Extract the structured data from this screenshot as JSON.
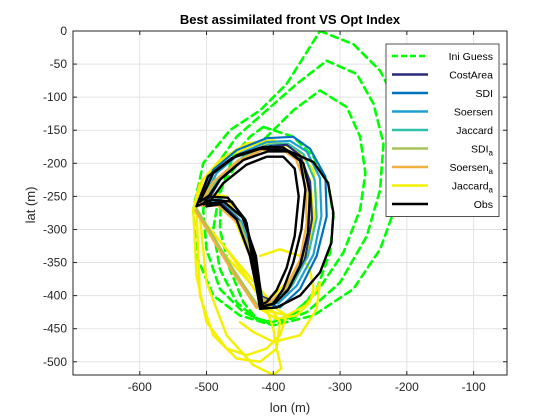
{
  "chart_data": {
    "type": "line",
    "title": "Best assimilated front VS Opt Index",
    "xlabel": "lon (m)",
    "ylabel": "lat (m)",
    "xlim": [
      -700,
      -50
    ],
    "ylim": [
      -520,
      0
    ],
    "xticks": [
      -600,
      -500,
      -400,
      -300,
      -200,
      -100
    ],
    "yticks": [
      0,
      -50,
      -100,
      -150,
      -200,
      -250,
      -300,
      -350,
      -400,
      -450,
      -500
    ],
    "grid": true,
    "legend_position": "top-right",
    "legend": [
      {
        "label": "Ini Guess",
        "sub": "",
        "color": "#00ff00",
        "dash": true
      },
      {
        "label": "CostArea",
        "sub": "",
        "color": "#2a2a7a",
        "dash": false
      },
      {
        "label": "SDI",
        "sub": "",
        "color": "#0072bd",
        "dash": false
      },
      {
        "label": "Soersen",
        "sub": "",
        "color": "#1e9fd0",
        "dash": false
      },
      {
        "label": "Jaccard",
        "sub": "",
        "color": "#30c0a8",
        "dash": false
      },
      {
        "label": "SDI",
        "sub": "a",
        "color": "#a6c45a",
        "dash": false
      },
      {
        "label": "Soersen",
        "sub": "a",
        "color": "#f0b040",
        "dash": false
      },
      {
        "label": "Jaccard",
        "sub": "a",
        "color": "#f5f000",
        "dash": false
      },
      {
        "label": "Obs",
        "sub": "",
        "color": "#000000",
        "dash": false
      }
    ],
    "series": [
      {
        "color": "#00ff00",
        "dash": true,
        "width": 2.6,
        "x": [
          -330,
          -280,
          -240,
          -210,
          -200,
          -215,
          -240,
          -280,
          -340,
          -400,
          -450,
          -490,
          -515,
          -520,
          -505,
          -465,
          -420,
          -380,
          -330
        ],
        "y": [
          0,
          -20,
          -60,
          -120,
          -190,
          -260,
          -330,
          -390,
          -430,
          -445,
          -430,
          -400,
          -340,
          -270,
          -200,
          -150,
          -120,
          -80,
          0
        ]
      },
      {
        "color": "#00ff00",
        "dash": true,
        "width": 2.6,
        "x": [
          -320,
          -275,
          -250,
          -235,
          -240,
          -260,
          -300,
          -350,
          -400,
          -445,
          -480,
          -500,
          -505,
          -490,
          -455,
          -410,
          -365,
          -320
        ],
        "y": [
          -45,
          -65,
          -110,
          -170,
          -240,
          -310,
          -380,
          -425,
          -445,
          -425,
          -390,
          -330,
          -270,
          -210,
          -160,
          -120,
          -80,
          -45
        ]
      },
      {
        "color": "#00ff00",
        "dash": true,
        "width": 2.6,
        "x": [
          -330,
          -290,
          -270,
          -262,
          -270,
          -295,
          -335,
          -380,
          -420,
          -455,
          -480,
          -490,
          -480,
          -450,
          -410,
          -370,
          -330
        ],
        "y": [
          -90,
          -115,
          -160,
          -215,
          -270,
          -335,
          -395,
          -435,
          -440,
          -410,
          -360,
          -300,
          -240,
          -195,
          -160,
          -120,
          -90
        ]
      },
      {
        "color": "#00ff00",
        "dash": true,
        "width": 2.6,
        "x": [
          -415,
          -370,
          -340,
          -318,
          -310,
          -315,
          -335,
          -365,
          -400,
          -425,
          -445,
          -465,
          -480,
          -478,
          -460,
          -435,
          -415
        ],
        "y": [
          -145,
          -160,
          -190,
          -230,
          -280,
          -335,
          -390,
          -425,
          -440,
          -435,
          -410,
          -360,
          -300,
          -240,
          -190,
          -160,
          -145
        ]
      },
      {
        "color": "#f5f000",
        "dash": false,
        "width": 2.4,
        "x": [
          -520,
          -495,
          -470,
          -445,
          -420,
          -395,
          -380,
          -390,
          -410,
          -440,
          -470,
          -500,
          -515,
          -520
        ],
        "y": [
          -270,
          -300,
          -330,
          -360,
          -390,
          -420,
          -430,
          -460,
          -480,
          -490,
          -480,
          -440,
          -370,
          -270
        ]
      },
      {
        "color": "#f5f000",
        "dash": false,
        "width": 2.4,
        "x": [
          -515,
          -480,
          -440,
          -410,
          -390,
          -395,
          -420,
          -455,
          -490,
          -510,
          -515
        ],
        "y": [
          -270,
          -330,
          -375,
          -410,
          -440,
          -480,
          -500,
          -495,
          -460,
          -400,
          -270
        ]
      },
      {
        "color": "#f5f000",
        "dash": false,
        "width": 2.4,
        "x": [
          -510,
          -470,
          -435,
          -410,
          -400,
          -395,
          -388,
          -400,
          -430,
          -470,
          -500,
          -510
        ],
        "y": [
          -280,
          -330,
          -380,
          -420,
          -450,
          -480,
          -510,
          -520,
          -505,
          -460,
          -380,
          -280
        ]
      },
      {
        "color": "#f5f000",
        "dash": false,
        "width": 2.4,
        "x": [
          -420,
          -380,
          -352,
          -340,
          -330,
          -335,
          -360,
          -400,
          -430,
          -450
        ],
        "y": [
          -420,
          -430,
          -415,
          -400,
          -380,
          -420,
          -460,
          -470,
          -455,
          -440
        ]
      },
      {
        "color": "#f5f000",
        "dash": false,
        "width": 2.4,
        "x": [
          -420,
          -395,
          -365,
          -345,
          -340,
          -345,
          -360,
          -390,
          -420
        ],
        "y": [
          -420,
          -435,
          -430,
          -410,
          -390,
          -360,
          -340,
          -330,
          -340
        ]
      },
      {
        "color": "#f0b040",
        "dash": false,
        "width": 3,
        "x": [
          -517,
          -490,
          -460,
          -440,
          -425
        ],
        "y": [
          -270,
          -315,
          -365,
          -395,
          -418
        ]
      },
      {
        "color": "#a6c45a",
        "dash": false,
        "width": 2,
        "x": [
          -515,
          -488,
          -458,
          -438,
          -422
        ],
        "y": [
          -268,
          -313,
          -363,
          -393,
          -416
        ]
      },
      {
        "color": "#f5f000",
        "dash": false,
        "width": 2.4,
        "x": [
          -520,
          -510,
          -480,
          -440,
          -400,
          -365,
          -340,
          -335,
          -345,
          -370,
          -400,
          -420,
          -430,
          -445,
          -470,
          -500,
          -520
        ],
        "y": [
          -270,
          -230,
          -195,
          -170,
          -165,
          -180,
          -210,
          -260,
          -320,
          -370,
          -400,
          -410,
          -360,
          -300,
          -250,
          -245,
          -270
        ]
      },
      {
        "color": "#f5f000",
        "dash": false,
        "width": 2.4,
        "x": [
          -518,
          -505,
          -470,
          -430,
          -395,
          -362,
          -345,
          -340,
          -350,
          -375,
          -405,
          -422,
          -435,
          -460,
          -495,
          -518
        ],
        "y": [
          -268,
          -225,
          -190,
          -172,
          -170,
          -190,
          -225,
          -280,
          -340,
          -385,
          -410,
          -405,
          -340,
          -280,
          -250,
          -268
        ]
      },
      {
        "color": "#0072bd",
        "dash": false,
        "width": 2.2,
        "x": [
          -510,
          -490,
          -455,
          -410,
          -370,
          -345,
          -322,
          -320,
          -335,
          -360,
          -390,
          -415,
          -430,
          -450,
          -480,
          -510
        ],
        "y": [
          -255,
          -210,
          -180,
          -162,
          -160,
          -178,
          -220,
          -280,
          -340,
          -390,
          -418,
          -410,
          -350,
          -290,
          -255,
          -255
        ]
      },
      {
        "color": "#1e9fd0",
        "dash": false,
        "width": 2.2,
        "x": [
          -505,
          -485,
          -450,
          -410,
          -375,
          -350,
          -330,
          -328,
          -340,
          -365,
          -393,
          -416,
          -428,
          -448,
          -478,
          -505
        ],
        "y": [
          -255,
          -215,
          -185,
          -168,
          -166,
          -182,
          -222,
          -280,
          -338,
          -385,
          -412,
          -405,
          -345,
          -288,
          -255,
          -255
        ]
      },
      {
        "color": "#30c0a8",
        "dash": false,
        "width": 2.2,
        "x": [
          -502,
          -480,
          -445,
          -408,
          -378,
          -355,
          -338,
          -335,
          -348,
          -372,
          -398,
          -418,
          -430,
          -450,
          -476,
          -502
        ],
        "y": [
          -258,
          -220,
          -190,
          -172,
          -170,
          -186,
          -225,
          -282,
          -340,
          -385,
          -410,
          -403,
          -344,
          -288,
          -258,
          -258
        ]
      },
      {
        "color": "#2a2a7a",
        "dash": false,
        "width": 2.2,
        "x": [
          -500,
          -478,
          -442,
          -405,
          -380,
          -360,
          -345,
          -342,
          -352,
          -375,
          -402,
          -420,
          -432,
          -452,
          -478,
          -500
        ],
        "y": [
          -260,
          -222,
          -192,
          -174,
          -172,
          -188,
          -228,
          -284,
          -342,
          -385,
          -408,
          -400,
          -342,
          -286,
          -260,
          -260
        ]
      },
      {
        "color": "#a6c45a",
        "dash": false,
        "width": 2.2,
        "x": [
          -508,
          -486,
          -452,
          -415,
          -385,
          -362,
          -348,
          -346,
          -356,
          -380,
          -405,
          -420,
          -430,
          -450,
          -480,
          -508
        ],
        "y": [
          -262,
          -225,
          -195,
          -178,
          -176,
          -192,
          -230,
          -288,
          -345,
          -388,
          -410,
          -402,
          -344,
          -290,
          -262,
          -262
        ]
      },
      {
        "color": "#f0b040",
        "dash": false,
        "width": 2.2,
        "x": [
          -512,
          -490,
          -455,
          -418,
          -388,
          -366,
          -352,
          -350,
          -360,
          -383,
          -408,
          -422,
          -432,
          -452,
          -483,
          -512
        ],
        "y": [
          -264,
          -228,
          -198,
          -180,
          -178,
          -194,
          -232,
          -290,
          -346,
          -390,
          -412,
          -404,
          -346,
          -292,
          -264,
          -264
        ]
      },
      {
        "color": "#000000",
        "dash": false,
        "width": 2.4,
        "x": [
          -515,
          -498,
          -462,
          -420,
          -380,
          -340,
          -318,
          -310,
          -313,
          -330,
          -360,
          -395,
          -420,
          -430,
          -440,
          -462,
          -492,
          -515
        ],
        "y": [
          -265,
          -220,
          -192,
          -178,
          -180,
          -198,
          -230,
          -275,
          -320,
          -365,
          -400,
          -418,
          -420,
          -355,
          -290,
          -258,
          -255,
          -265
        ]
      },
      {
        "color": "#000000",
        "dash": false,
        "width": 2.4,
        "x": [
          -510,
          -490,
          -455,
          -415,
          -385,
          -360,
          -352,
          -358,
          -370,
          -385,
          -400,
          -418,
          -428,
          -442,
          -468,
          -498,
          -510
        ],
        "y": [
          -258,
          -215,
          -188,
          -175,
          -176,
          -195,
          -240,
          -300,
          -350,
          -390,
          -412,
          -418,
          -345,
          -285,
          -252,
          -250,
          -258
        ]
      },
      {
        "color": "#000000",
        "dash": false,
        "width": 2.4,
        "x": [
          -505,
          -480,
          -445,
          -408,
          -378,
          -355,
          -345,
          -348,
          -360,
          -378,
          -398,
          -416,
          -426,
          -446,
          -474,
          -505
        ],
        "y": [
          -262,
          -225,
          -195,
          -182,
          -182,
          -200,
          -245,
          -305,
          -355,
          -392,
          -412,
          -416,
          -340,
          -282,
          -258,
          -262
        ]
      },
      {
        "color": "#000000",
        "dash": false,
        "width": 2.4,
        "x": [
          -500,
          -475,
          -440,
          -410,
          -385,
          -368,
          -362,
          -368,
          -380,
          -395,
          -410,
          -420,
          -435,
          -455,
          -480,
          -500
        ],
        "y": [
          -265,
          -230,
          -202,
          -190,
          -190,
          -208,
          -250,
          -310,
          -358,
          -392,
          -410,
          -414,
          -340,
          -285,
          -262,
          -265
        ]
      }
    ]
  }
}
